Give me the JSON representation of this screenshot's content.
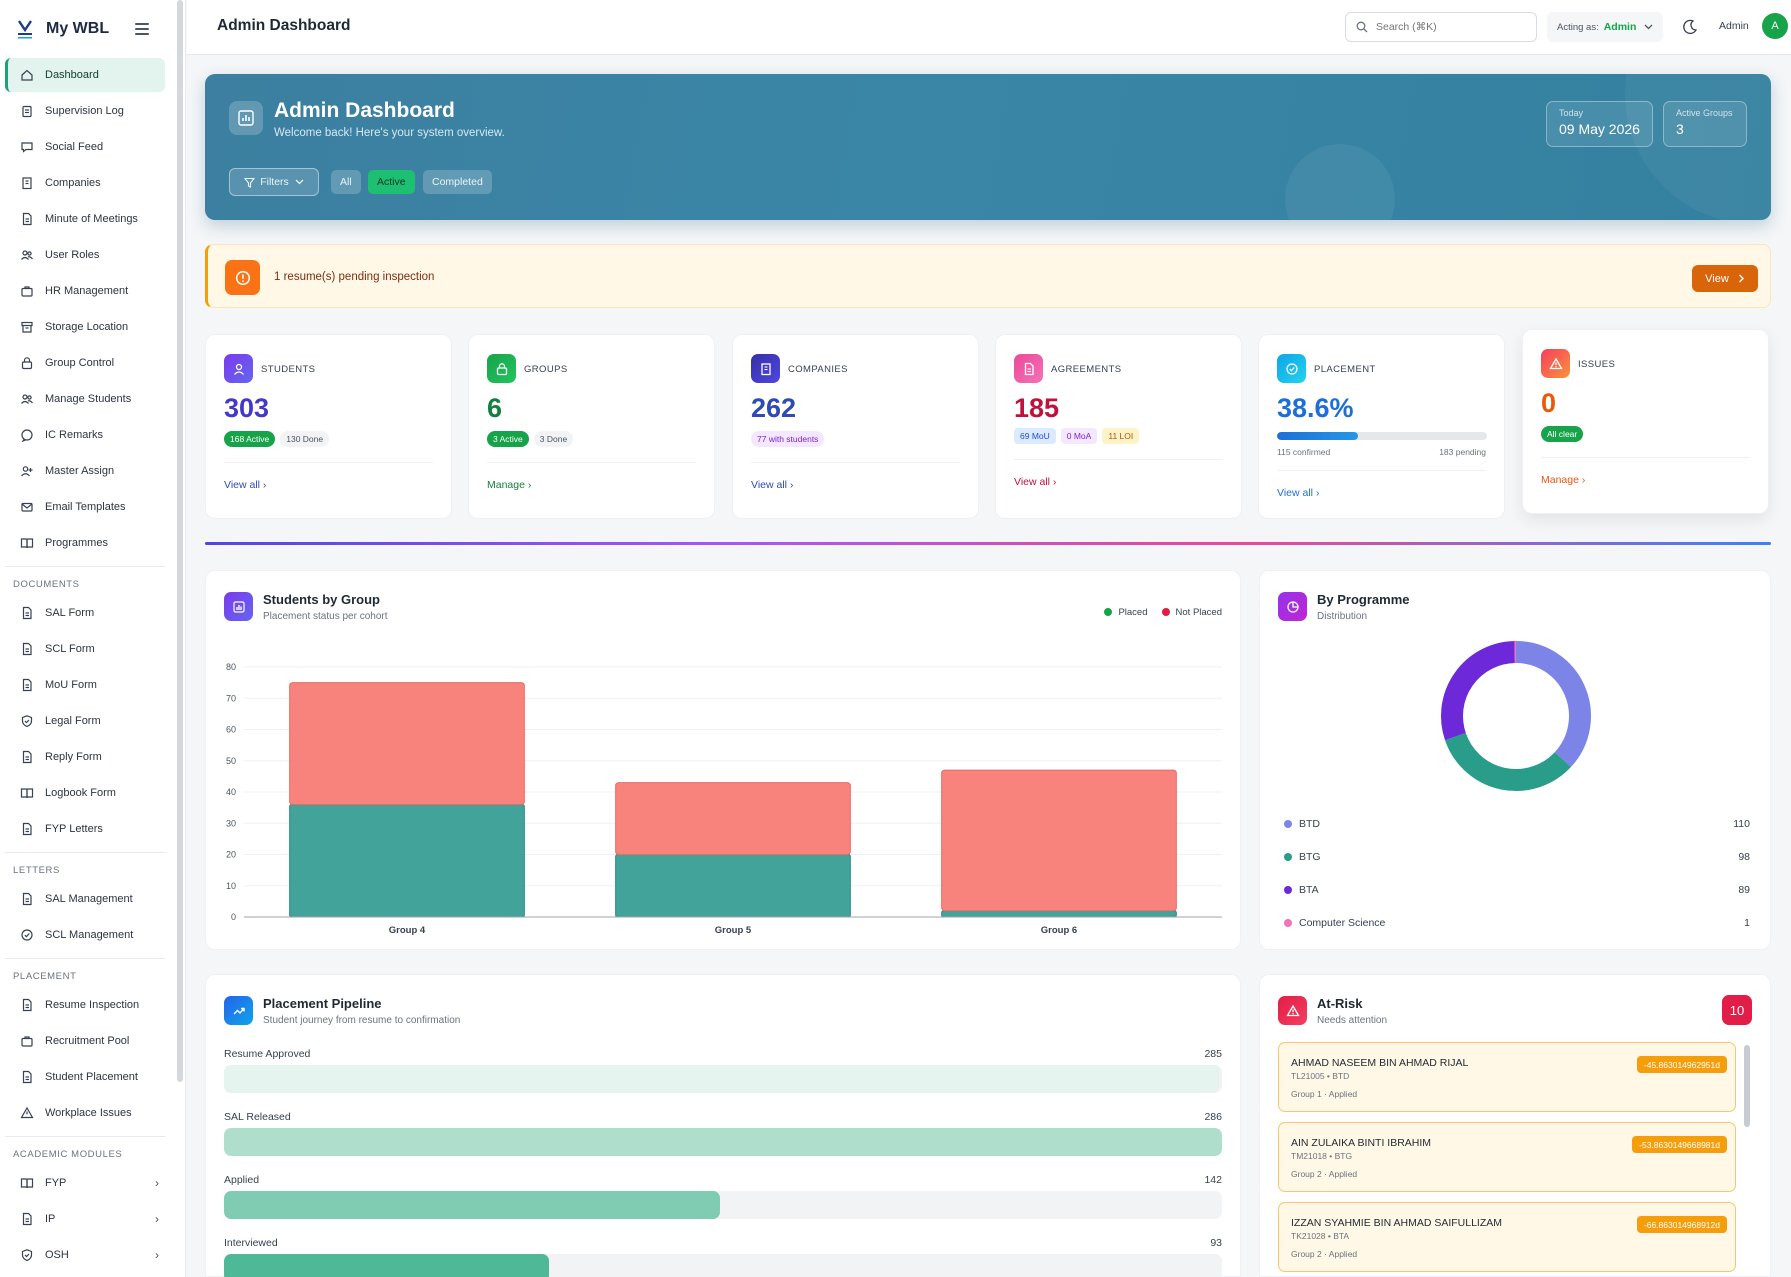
{
  "app": {
    "name": "My WBL"
  },
  "sidebar": {
    "items": [
      {
        "label": "Dashboard",
        "icon": "home-icon"
      },
      {
        "label": "Supervision Log",
        "icon": "clipboard-icon"
      },
      {
        "label": "Social Feed",
        "icon": "chat-icon"
      },
      {
        "label": "Companies",
        "icon": "building-icon"
      },
      {
        "label": "Minute of Meetings",
        "icon": "document-icon"
      },
      {
        "label": "User Roles",
        "icon": "users-icon"
      },
      {
        "label": "HR Management",
        "icon": "briefcase-icon"
      },
      {
        "label": "Storage Location",
        "icon": "archive-icon"
      },
      {
        "label": "Group Control",
        "icon": "lock-icon"
      },
      {
        "label": "Manage Students",
        "icon": "users-icon"
      },
      {
        "label": "IC Remarks",
        "icon": "message-icon"
      },
      {
        "label": "Master Assign",
        "icon": "user-plus-icon"
      },
      {
        "label": "Email Templates",
        "icon": "mail-icon"
      },
      {
        "label": "Programmes",
        "icon": "book-icon"
      }
    ],
    "sections": {
      "documents": {
        "title": "DOCUMENTS",
        "items": [
          {
            "label": "SAL Form",
            "icon": "document-icon"
          },
          {
            "label": "SCL Form",
            "icon": "document-icon"
          },
          {
            "label": "MoU Form",
            "icon": "document-icon"
          },
          {
            "label": "Legal Form",
            "icon": "shield-icon"
          },
          {
            "label": "Reply Form",
            "icon": "document-icon"
          },
          {
            "label": "Logbook Form",
            "icon": "book-icon"
          },
          {
            "label": "FYP Letters",
            "icon": "document-icon"
          }
        ]
      },
      "letters": {
        "title": "LETTERS",
        "items": [
          {
            "label": "SAL Management",
            "icon": "document-icon"
          },
          {
            "label": "SCL Management",
            "icon": "check-circle-icon"
          }
        ]
      },
      "placement": {
        "title": "PLACEMENT",
        "items": [
          {
            "label": "Resume Inspection",
            "icon": "document-icon"
          },
          {
            "label": "Recruitment Pool",
            "icon": "briefcase-icon"
          },
          {
            "label": "Student Placement",
            "icon": "document-icon"
          },
          {
            "label": "Workplace Issues",
            "icon": "warning-icon"
          }
        ]
      },
      "academic": {
        "title": "ACADEMIC MODULES",
        "items": [
          {
            "label": "FYP",
            "icon": "book-icon"
          },
          {
            "label": "IP",
            "icon": "document-icon"
          },
          {
            "label": "OSH",
            "icon": "shield-icon"
          }
        ]
      }
    }
  },
  "topbar": {
    "title": "Admin Dashboard",
    "search_placeholder": "Search (⌘K)",
    "acting_label": "Acting as:",
    "acting_value": "Admin",
    "user_name": "Admin",
    "avatar_letter": "A"
  },
  "hero": {
    "title": "Admin Dashboard",
    "subtitle": "Welcome back! Here's your system overview.",
    "filters_label": "Filters",
    "pills": [
      "All",
      "Active",
      "Completed"
    ],
    "today_label": "Today",
    "today_value": "09 May 2026",
    "groups_label": "Active Groups",
    "groups_value": "3"
  },
  "alert": {
    "text": "1 resume(s) pending inspection",
    "button": "View"
  },
  "kpis": {
    "students": {
      "label": "STUDENTS",
      "value": "303",
      "chip1": "168 Active",
      "chip2": "130 Done",
      "link": "View all"
    },
    "groups": {
      "label": "GROUPS",
      "value": "6",
      "chip1": "3 Active",
      "chip2": "3 Done",
      "link": "Manage"
    },
    "companies": {
      "label": "COMPANIES",
      "value": "262",
      "chip1": "77 with students",
      "link": "View all"
    },
    "agreements": {
      "label": "AGREEMENTS",
      "value": "185",
      "chip1": "69 MoU",
      "chip2": "0 MoA",
      "chip3": "11 LOI",
      "link": "View all"
    },
    "placement": {
      "label": "PLACEMENT",
      "value": "38.6%",
      "progress": 0.386,
      "left": "115 confirmed",
      "right": "183 pending",
      "link": "View all"
    },
    "issues": {
      "label": "ISSUES",
      "value": "0",
      "chip1": "All clear",
      "link": "Manage"
    }
  },
  "colors": {
    "placed": "#42a39b",
    "not_placed": "#f8837c",
    "accent": "#1aa37a"
  },
  "students_by_group": {
    "title": "Students by Group",
    "subtitle": "Placement status per cohort",
    "legend": [
      "Placed",
      "Not Placed"
    ]
  },
  "chart_data": {
    "type": "bar",
    "stacked": true,
    "categories": [
      "Group 4",
      "Group 5",
      "Group 6"
    ],
    "series": [
      {
        "name": "Placed",
        "values": [
          36,
          20,
          2
        ]
      },
      {
        "name": "Not Placed",
        "values": [
          39,
          23,
          45
        ]
      }
    ],
    "ylim": [
      0,
      80
    ],
    "yticks": [
      0,
      10,
      20,
      30,
      40,
      50,
      60,
      70,
      80
    ],
    "grid": true,
    "legend": "top-right"
  },
  "by_programme": {
    "title": "By Programme",
    "subtitle": "Distribution",
    "items": [
      {
        "name": "BTD",
        "value": 110,
        "color": "#7c84e8"
      },
      {
        "name": "BTG",
        "value": 98,
        "color": "#2a9d8a"
      },
      {
        "name": "BTA",
        "value": 89,
        "color": "#6d28d9"
      },
      {
        "name": "Computer Science",
        "value": 1,
        "color": "#f472b6"
      }
    ]
  },
  "pipeline": {
    "title": "Placement Pipeline",
    "subtitle": "Student journey from resume to confirmation",
    "max": 286,
    "rows": [
      {
        "label": "Resume Approved",
        "value": 285,
        "color": "#e6f4ef"
      },
      {
        "label": "SAL Released",
        "value": 286,
        "color": "#afdfcc"
      },
      {
        "label": "Applied",
        "value": 142,
        "color": "#7fccb3"
      },
      {
        "label": "Interviewed",
        "value": 93,
        "color": "#4fb897"
      }
    ]
  },
  "at_risk": {
    "title": "At-Risk",
    "subtitle": "Needs attention",
    "count": "10",
    "items": [
      {
        "name": "AHMAD NASEEM BIN AHMAD RIJAL",
        "id": "TL21005 • BTD",
        "status": "Group 1 · Applied",
        "days": "-45.863014962951d"
      },
      {
        "name": "AIN ZULAIKA BINTI IBRAHIM",
        "id": "TM21018 • BTG",
        "status": "Group 2 · Applied",
        "days": "-53.8630149668981d"
      },
      {
        "name": "IZZAN SYAHMIE BIN AHMAD SAIFULLIZAM",
        "id": "TK21028 • BTA",
        "status": "Group 2 · Applied",
        "days": "-66.863014968912d"
      }
    ]
  }
}
